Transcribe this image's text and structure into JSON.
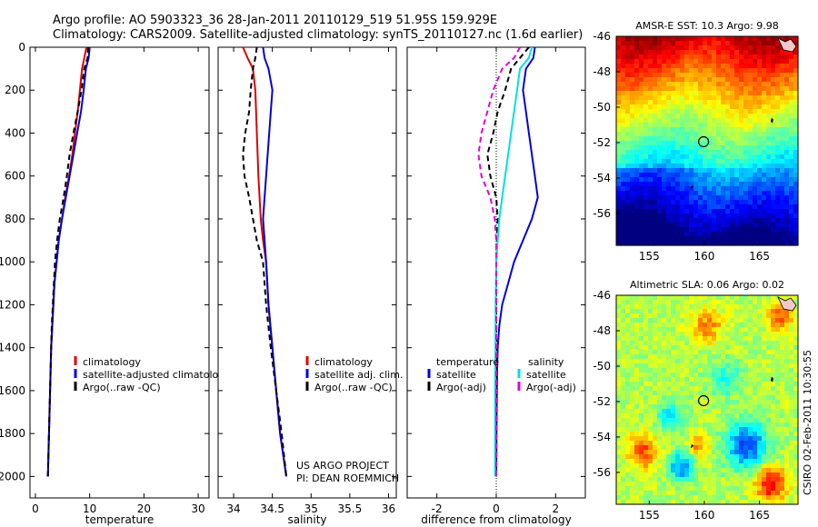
{
  "header": {
    "line1": "Argo profile: AO 5903323_36 28-Jan-2011 20110129_519 51.95S 159.929E",
    "line2": "Climatology: CARS2009. Satellite-adjusted climatology: synTS_20110127.nc (1.6d earlier)"
  },
  "credit": [
    "US ARGO PROJECT",
    "PI: DEAN ROEMMICH"
  ],
  "timestamp": "CSIRO 02-Feb-2011 10:30:55",
  "colors": {
    "climatology": "#e00000",
    "satellite": "#0000e0",
    "argo": "#000000",
    "sat_salinity": "#00e0e0",
    "argo_salinity": "#e000e0"
  },
  "chart_data": [
    {
      "type": "line",
      "id": "temperature",
      "xlabel": "temperature",
      "xlim": [
        -1,
        32
      ],
      "ylim": [
        0,
        2100
      ],
      "y_reversed": true,
      "xticks": [
        0,
        10,
        20,
        30
      ],
      "yticks": [
        0,
        200,
        400,
        600,
        800,
        1000,
        1200,
        1400,
        1600,
        1800,
        2000
      ],
      "legend": [
        "climatology",
        "satellite-adjusted climatology",
        "Argo(..raw -QC)"
      ],
      "series": [
        {
          "name": "climatology",
          "style": "solid",
          "color": "#e00000",
          "points": [
            [
              9.4,
              0
            ],
            [
              9.0,
              50
            ],
            [
              8.6,
              100
            ],
            [
              8.2,
              200
            ],
            [
              7.8,
              300
            ],
            [
              7.3,
              400
            ],
            [
              6.8,
              500
            ],
            [
              6.2,
              600
            ],
            [
              5.5,
              700
            ],
            [
              4.9,
              800
            ],
            [
              4.3,
              900
            ],
            [
              3.9,
              1000
            ],
            [
              3.5,
              1100
            ],
            [
              3.3,
              1200
            ],
            [
              3.1,
              1300
            ],
            [
              2.9,
              1400
            ],
            [
              2.8,
              1500
            ],
            [
              2.7,
              1600
            ],
            [
              2.6,
              1700
            ],
            [
              2.5,
              1800
            ],
            [
              2.4,
              1900
            ],
            [
              2.3,
              2000
            ]
          ]
        },
        {
          "name": "satellite-adjusted climatology",
          "style": "solid",
          "color": "#0000e0",
          "points": [
            [
              10.0,
              0
            ],
            [
              9.8,
              50
            ],
            [
              9.3,
              100
            ],
            [
              8.9,
              200
            ],
            [
              8.4,
              300
            ],
            [
              7.7,
              400
            ],
            [
              7.0,
              500
            ],
            [
              6.3,
              600
            ],
            [
              5.6,
              700
            ],
            [
              4.9,
              800
            ],
            [
              4.3,
              900
            ],
            [
              3.9,
              1000
            ],
            [
              3.5,
              1100
            ],
            [
              3.3,
              1200
            ],
            [
              3.1,
              1300
            ],
            [
              2.9,
              1400
            ],
            [
              2.8,
              1500
            ],
            [
              2.7,
              1600
            ],
            [
              2.6,
              1700
            ],
            [
              2.5,
              1800
            ],
            [
              2.4,
              1900
            ],
            [
              2.3,
              2000
            ]
          ]
        },
        {
          "name": "Argo(..raw -QC)",
          "style": "dashed",
          "color": "#000000",
          "points": [
            [
              9.7,
              0
            ],
            [
              9.6,
              50
            ],
            [
              9.0,
              100
            ],
            [
              8.5,
              200
            ],
            [
              7.8,
              300
            ],
            [
              7.0,
              400
            ],
            [
              6.3,
              500
            ],
            [
              5.8,
              600
            ],
            [
              5.2,
              700
            ],
            [
              4.5,
              800
            ],
            [
              4.0,
              900
            ],
            [
              3.6,
              1000
            ],
            [
              3.4,
              1100
            ],
            [
              3.2,
              1200
            ],
            [
              3.0,
              1300
            ],
            [
              2.9,
              1400
            ],
            [
              2.8,
              1500
            ],
            [
              2.7,
              1600
            ],
            [
              2.6,
              1700
            ],
            [
              2.5,
              1800
            ],
            [
              2.4,
              1900
            ],
            [
              2.3,
              2000
            ]
          ]
        }
      ]
    },
    {
      "type": "line",
      "id": "salinity",
      "xlabel": "salinity",
      "xlim": [
        33.8,
        36.1
      ],
      "ylim": [
        0,
        2100
      ],
      "y_reversed": true,
      "xticks": [
        34,
        34.5,
        35,
        35.5,
        36
      ],
      "legend": [
        "climatology",
        "satellite adj. clim.",
        "Argo(..raw -QC)"
      ],
      "series": [
        {
          "name": "climatology",
          "style": "solid",
          "color": "#e00000",
          "points": [
            [
              34.12,
              0
            ],
            [
              34.18,
              50
            ],
            [
              34.25,
              100
            ],
            [
              34.28,
              200
            ],
            [
              34.3,
              400
            ],
            [
              34.32,
              600
            ],
            [
              34.35,
              800
            ],
            [
              34.38,
              900
            ],
            [
              34.42,
              1000
            ],
            [
              34.45,
              1200
            ],
            [
              34.5,
              1400
            ],
            [
              34.55,
              1600
            ],
            [
              34.6,
              1800
            ],
            [
              34.68,
              2000
            ]
          ]
        },
        {
          "name": "satellite adj. clim.",
          "style": "solid",
          "color": "#0000e0",
          "points": [
            [
              34.38,
              0
            ],
            [
              34.4,
              50
            ],
            [
              34.45,
              100
            ],
            [
              34.5,
              200
            ],
            [
              34.48,
              300
            ],
            [
              34.44,
              500
            ],
            [
              34.4,
              700
            ],
            [
              34.38,
              800
            ],
            [
              34.4,
              900
            ],
            [
              34.42,
              1000
            ],
            [
              34.45,
              1200
            ],
            [
              34.5,
              1400
            ],
            [
              34.55,
              1600
            ],
            [
              34.6,
              1800
            ],
            [
              34.68,
              2000
            ]
          ]
        },
        {
          "name": "Argo(..raw -QC)",
          "style": "dashed",
          "color": "#000000",
          "points": [
            [
              34.3,
              0
            ],
            [
              34.28,
              50
            ],
            [
              34.25,
              100
            ],
            [
              34.22,
              200
            ],
            [
              34.2,
              300
            ],
            [
              34.15,
              400
            ],
            [
              34.12,
              500
            ],
            [
              34.14,
              600
            ],
            [
              34.2,
              700
            ],
            [
              34.3,
              900
            ],
            [
              34.38,
              1000
            ],
            [
              34.42,
              1200
            ],
            [
              34.48,
              1400
            ],
            [
              34.55,
              1600
            ],
            [
              34.62,
              1800
            ],
            [
              34.68,
              2000
            ]
          ]
        }
      ]
    },
    {
      "type": "line",
      "id": "difference",
      "xlabel": "difference from climatology",
      "xlim": [
        -3,
        3
      ],
      "ylim": [
        0,
        2100
      ],
      "y_reversed": true,
      "xticks": [
        -2,
        0,
        2
      ],
      "legend_titles": [
        "temperature",
        "salinity"
      ],
      "legend": [
        "satellite",
        "Argo(-adj)",
        "satellite",
        "Argo(-adj)"
      ],
      "series": [
        {
          "name": "satellite",
          "group": "temperature",
          "style": "solid",
          "color": "#0000e0",
          "points": [
            [
              1.3,
              0
            ],
            [
              1.25,
              50
            ],
            [
              1.0,
              100
            ],
            [
              0.9,
              200
            ],
            [
              1.0,
              300
            ],
            [
              1.1,
              400
            ],
            [
              1.2,
              500
            ],
            [
              1.3,
              600
            ],
            [
              1.4,
              700
            ],
            [
              1.2,
              800
            ],
            [
              0.9,
              900
            ],
            [
              0.6,
              1000
            ],
            [
              0.4,
              1100
            ],
            [
              0.2,
              1200
            ],
            [
              0.1,
              1300
            ],
            [
              0.05,
              1400
            ],
            [
              0.03,
              1500
            ],
            [
              0.02,
              1600
            ],
            [
              0.01,
              1800
            ],
            [
              0.0,
              2000
            ]
          ]
        },
        {
          "name": "Argo(-adj)",
          "group": "temperature",
          "style": "dashed",
          "color": "#000000",
          "points": [
            [
              1.1,
              0
            ],
            [
              0.8,
              50
            ],
            [
              0.5,
              100
            ],
            [
              0.3,
              200
            ],
            [
              0.05,
              300
            ],
            [
              -0.1,
              400
            ],
            [
              -0.3,
              500
            ],
            [
              -0.2,
              600
            ],
            [
              0.0,
              700
            ],
            [
              0.05,
              800
            ],
            [
              0.02,
              900
            ],
            [
              0.0,
              1000
            ],
            [
              0.0,
              1200
            ],
            [
              0.0,
              1500
            ],
            [
              0.0,
              2000
            ]
          ]
        },
        {
          "name": "satellite",
          "group": "salinity",
          "style": "solid",
          "color": "#00e0e0",
          "points": [
            [
              1.2,
              0
            ],
            [
              1.1,
              50
            ],
            [
              0.8,
              100
            ],
            [
              0.7,
              200
            ],
            [
              0.6,
              300
            ],
            [
              0.5,
              400
            ],
            [
              0.4,
              500
            ],
            [
              0.3,
              600
            ],
            [
              0.2,
              700
            ],
            [
              0.1,
              800
            ],
            [
              0.05,
              900
            ],
            [
              0.0,
              1000
            ],
            [
              -0.02,
              1200
            ],
            [
              -0.03,
              1400
            ],
            [
              -0.04,
              1600
            ],
            [
              -0.04,
              1800
            ],
            [
              -0.04,
              2000
            ]
          ]
        },
        {
          "name": "Argo(-adj)",
          "group": "salinity",
          "style": "dashed",
          "color": "#e000e0",
          "points": [
            [
              0.8,
              0
            ],
            [
              0.6,
              50
            ],
            [
              0.2,
              100
            ],
            [
              -0.1,
              200
            ],
            [
              -0.3,
              300
            ],
            [
              -0.5,
              400
            ],
            [
              -0.6,
              500
            ],
            [
              -0.5,
              600
            ],
            [
              -0.2,
              700
            ],
            [
              -0.05,
              800
            ],
            [
              0.0,
              900
            ],
            [
              0.0,
              1000
            ],
            [
              0.0,
              2000
            ]
          ]
        }
      ]
    },
    {
      "type": "heatmap",
      "id": "sst-map",
      "title": "AMSR-E SST: 10.3 Argo: 9.98",
      "xlim": [
        152,
        168.5
      ],
      "ylim": [
        -57.8,
        -46
      ],
      "xticks": [
        155,
        160,
        165
      ],
      "yticks": [
        -46,
        -48,
        -50,
        -52,
        -54,
        -56
      ],
      "marker": {
        "lon": 159.929,
        "lat": -51.95
      }
    },
    {
      "type": "heatmap",
      "id": "sla-map",
      "title": "Altimetric SLA: 0.06 Argo: 0.02",
      "xlim": [
        152,
        168.5
      ],
      "ylim": [
        -57.8,
        -46
      ],
      "xticks": [
        155,
        160,
        165
      ],
      "yticks": [
        -46,
        -48,
        -50,
        -52,
        -54,
        -56
      ],
      "marker": {
        "lon": 159.929,
        "lat": -51.95
      }
    }
  ]
}
